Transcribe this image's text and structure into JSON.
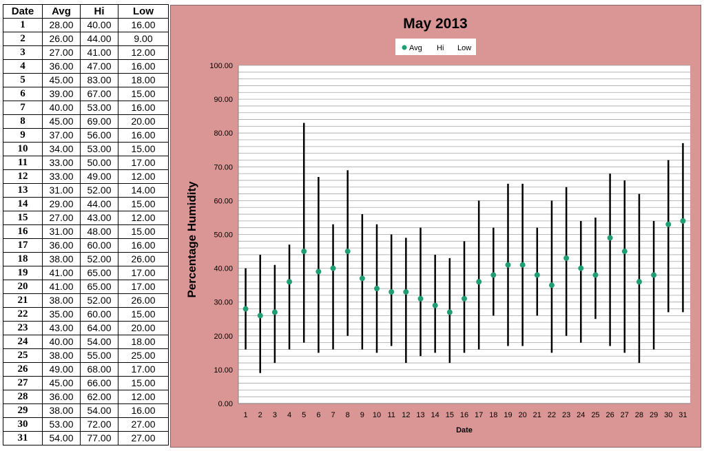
{
  "table": {
    "headers": [
      "Date",
      "Avg",
      "Hi",
      "Low"
    ],
    "rows": [
      [
        "1",
        "28.00",
        "40.00",
        "16.00"
      ],
      [
        "2",
        "26.00",
        "44.00",
        "9.00"
      ],
      [
        "3",
        "27.00",
        "41.00",
        "12.00"
      ],
      [
        "4",
        "36.00",
        "47.00",
        "16.00"
      ],
      [
        "5",
        "45.00",
        "83.00",
        "18.00"
      ],
      [
        "6",
        "39.00",
        "67.00",
        "15.00"
      ],
      [
        "7",
        "40.00",
        "53.00",
        "16.00"
      ],
      [
        "8",
        "45.00",
        "69.00",
        "20.00"
      ],
      [
        "9",
        "37.00",
        "56.00",
        "16.00"
      ],
      [
        "10",
        "34.00",
        "53.00",
        "15.00"
      ],
      [
        "11",
        "33.00",
        "50.00",
        "17.00"
      ],
      [
        "12",
        "33.00",
        "49.00",
        "12.00"
      ],
      [
        "13",
        "31.00",
        "52.00",
        "14.00"
      ],
      [
        "14",
        "29.00",
        "44.00",
        "15.00"
      ],
      [
        "15",
        "27.00",
        "43.00",
        "12.00"
      ],
      [
        "16",
        "31.00",
        "48.00",
        "15.00"
      ],
      [
        "17",
        "36.00",
        "60.00",
        "16.00"
      ],
      [
        "18",
        "38.00",
        "52.00",
        "26.00"
      ],
      [
        "19",
        "41.00",
        "65.00",
        "17.00"
      ],
      [
        "20",
        "41.00",
        "65.00",
        "17.00"
      ],
      [
        "21",
        "38.00",
        "52.00",
        "26.00"
      ],
      [
        "22",
        "35.00",
        "60.00",
        "15.00"
      ],
      [
        "23",
        "43.00",
        "64.00",
        "20.00"
      ],
      [
        "24",
        "40.00",
        "54.00",
        "18.00"
      ],
      [
        "25",
        "38.00",
        "55.00",
        "25.00"
      ],
      [
        "26",
        "49.00",
        "68.00",
        "17.00"
      ],
      [
        "27",
        "45.00",
        "66.00",
        "15.00"
      ],
      [
        "28",
        "36.00",
        "62.00",
        "12.00"
      ],
      [
        "29",
        "38.00",
        "54.00",
        "16.00"
      ],
      [
        "30",
        "53.00",
        "72.00",
        "27.00"
      ],
      [
        "31",
        "54.00",
        "77.00",
        "27.00"
      ]
    ]
  },
  "chart_data": {
    "type": "scatter",
    "title": "May 2013",
    "xlabel": "Date",
    "ylabel": "Percentage Humidity",
    "ylim": [
      0,
      100
    ],
    "ytick_labels": [
      "0.00",
      "10.00",
      "20.00",
      "30.00",
      "40.00",
      "50.00",
      "60.00",
      "70.00",
      "80.00",
      "90.00",
      "100.00"
    ],
    "categories": [
      "1",
      "2",
      "3",
      "4",
      "5",
      "6",
      "7",
      "8",
      "9",
      "10",
      "11",
      "12",
      "13",
      "14",
      "15",
      "16",
      "17",
      "18",
      "19",
      "20",
      "21",
      "22",
      "23",
      "24",
      "25",
      "26",
      "27",
      "28",
      "29",
      "30",
      "31"
    ],
    "series": [
      {
        "name": "Avg",
        "values": [
          28,
          26,
          27,
          36,
          45,
          39,
          40,
          45,
          37,
          34,
          33,
          33,
          31,
          29,
          27,
          31,
          36,
          38,
          41,
          41,
          38,
          35,
          43,
          40,
          38,
          49,
          45,
          36,
          38,
          53,
          54
        ]
      },
      {
        "name": "Hi",
        "values": [
          40,
          44,
          41,
          47,
          83,
          67,
          53,
          69,
          56,
          53,
          50,
          49,
          52,
          44,
          43,
          48,
          60,
          52,
          65,
          65,
          52,
          60,
          64,
          54,
          55,
          68,
          66,
          62,
          54,
          72,
          77
        ]
      },
      {
        "name": "Low",
        "values": [
          16,
          9,
          12,
          16,
          18,
          15,
          16,
          20,
          16,
          15,
          17,
          12,
          14,
          15,
          12,
          15,
          16,
          26,
          17,
          17,
          26,
          15,
          20,
          18,
          25,
          17,
          15,
          12,
          16,
          27,
          27
        ]
      }
    ],
    "legend_position": "top",
    "grid": true,
    "colors": {
      "panel": "#da9694",
      "avg_marker": "#1f9e74",
      "range_line": "#000000",
      "gridline": "#a6a6a6",
      "plot_bg": "#ffffff"
    }
  }
}
